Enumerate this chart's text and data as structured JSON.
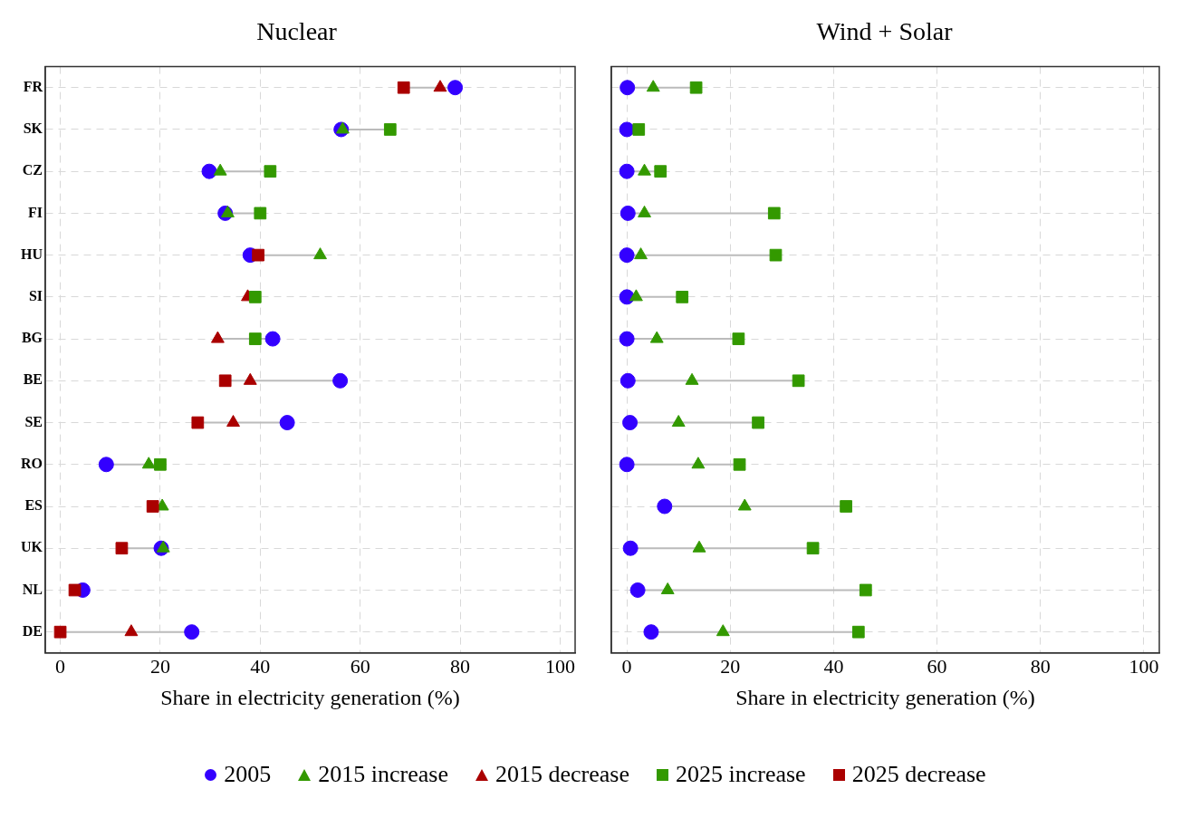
{
  "chart_data": [
    {
      "type": "scatter",
      "title": "Nuclear",
      "xlabel": "Share in electricity generation (%)",
      "orientation": "horizontal",
      "categories": [
        "FR",
        "SK",
        "CZ",
        "FI",
        "HU",
        "SI",
        "BG",
        "BE",
        "SE",
        "RO",
        "ES",
        "UK",
        "NL",
        "DE"
      ],
      "xlim": [
        -3,
        103
      ],
      "xticks": [
        0,
        20,
        40,
        60,
        80,
        100
      ],
      "grid": true,
      "legend": "bottom",
      "series": [
        {
          "name": "2005",
          "color": "#3300ff",
          "marker": "circle",
          "values": [
            79,
            56.2,
            29.8,
            33,
            38,
            null,
            42.5,
            56,
            45.4,
            9.2,
            null,
            20.2,
            4.5,
            26.3
          ]
        },
        {
          "name": "2015 increase",
          "color": "#339900",
          "marker": "triangle",
          "values": [
            null,
            56.5,
            32,
            33.5,
            52,
            null,
            null,
            null,
            null,
            17.7,
            20.4,
            20.6,
            null,
            null
          ]
        },
        {
          "name": "2015 decrease",
          "color": "#aa0000",
          "marker": "triangle",
          "values": [
            76,
            null,
            null,
            null,
            null,
            37.5,
            31.5,
            38,
            34.6,
            null,
            null,
            null,
            null,
            14.2
          ]
        },
        {
          "name": "2025 increase",
          "color": "#339900",
          "marker": "square",
          "values": [
            null,
            66,
            42,
            40,
            null,
            39,
            39,
            null,
            null,
            20,
            null,
            null,
            null,
            null
          ]
        },
        {
          "name": "2025 decrease",
          "color": "#aa0000",
          "marker": "square",
          "values": [
            68.7,
            null,
            null,
            null,
            39.6,
            null,
            null,
            33,
            27.5,
            null,
            18.5,
            12.3,
            2.9,
            0
          ]
        }
      ]
    },
    {
      "type": "scatter",
      "title": "Wind + Solar",
      "xlabel": "Share in electricity generation (%)",
      "orientation": "horizontal",
      "categories": [
        null,
        null,
        null,
        null,
        null,
        null,
        null,
        null,
        null,
        null,
        null,
        null,
        null,
        null
      ],
      "xlim": [
        -3,
        103
      ],
      "xticks": [
        0,
        20,
        40,
        60,
        80,
        100
      ],
      "grid": true,
      "tick_labels": "x",
      "series": [
        {
          "color": "#3300ff",
          "marker": "circle",
          "values": [
            0.1,
            0,
            0,
            0.2,
            0,
            0,
            0,
            0.2,
            0.6,
            0,
            7.3,
            0.7,
            2.1,
            4.7
          ]
        },
        {
          "color": "#339900",
          "marker": "triangle",
          "values": [
            5.1,
            null,
            3.4,
            3.4,
            2.7,
            1.8,
            5.8,
            12.6,
            10,
            13.8,
            22.8,
            14,
            7.9,
            18.6
          ]
        },
        {
          "color": "#339900",
          "marker": "square",
          "values": [
            13.4,
            2.3,
            6.5,
            28.5,
            28.8,
            10.7,
            21.6,
            33.2,
            25.4,
            21.8,
            42.4,
            36,
            46.2,
            44.8
          ]
        }
      ]
    }
  ]
}
